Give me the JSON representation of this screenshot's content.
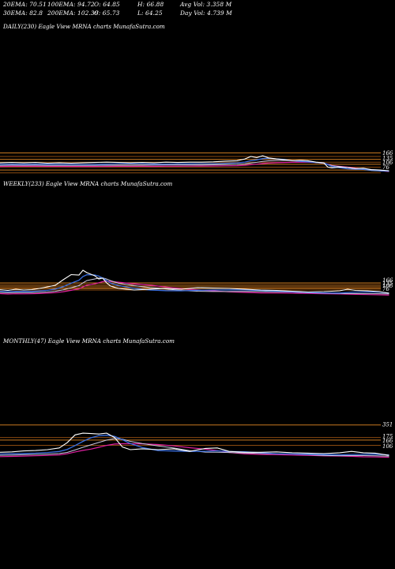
{
  "header": {
    "row1": [
      {
        "text": "20EMA: 70.51"
      },
      {
        "text": "100EMA: 94.72"
      },
      {
        "text": "O: 64.85"
      },
      {
        "text": "H: 66.88"
      },
      {
        "text": "Avg Vol: 3.358  M"
      }
    ],
    "row2": [
      {
        "text": "30EMA: 82.8"
      },
      {
        "text": "200EMA: 102.39"
      },
      {
        "text": "C: 65.73"
      },
      {
        "text": "L: 64.25"
      },
      {
        "text": "Day Vol: 4.739 M"
      }
    ]
  },
  "colors": {
    "background": "#000000",
    "price": "#ffffff",
    "ema_blue": "#3a6fe0",
    "ema_pink": "#e020a0",
    "ema_light": "#c8c8e0",
    "level_orange": "#c87820",
    "level_brown": "#8a4a10"
  },
  "chart_data": [
    {
      "type": "line",
      "title": "DAILY(230) Eagle   View  MRNA charts MunafaSutra.com",
      "levels": [
        {
          "label": "166"
        },
        {
          "label": "135"
        },
        {
          "label": "106"
        },
        {
          "label": "76"
        }
      ],
      "price": [
        [
          0,
          0.58
        ],
        [
          0.03,
          0.57
        ],
        [
          0.06,
          0.58
        ],
        [
          0.09,
          0.57
        ],
        [
          0.12,
          0.59
        ],
        [
          0.15,
          0.58
        ],
        [
          0.18,
          0.59
        ],
        [
          0.21,
          0.58
        ],
        [
          0.24,
          0.57
        ],
        [
          0.27,
          0.56
        ],
        [
          0.3,
          0.57
        ],
        [
          0.33,
          0.58
        ],
        [
          0.36,
          0.57
        ],
        [
          0.39,
          0.58
        ],
        [
          0.42,
          0.56
        ],
        [
          0.45,
          0.57
        ],
        [
          0.48,
          0.56
        ],
        [
          0.51,
          0.56
        ],
        [
          0.54,
          0.55
        ],
        [
          0.57,
          0.53
        ],
        [
          0.6,
          0.52
        ],
        [
          0.62,
          0.47
        ],
        [
          0.635,
          0.4
        ],
        [
          0.65,
          0.43
        ],
        [
          0.665,
          0.38
        ],
        [
          0.68,
          0.44
        ],
        [
          0.7,
          0.47
        ],
        [
          0.72,
          0.49
        ],
        [
          0.74,
          0.52
        ],
        [
          0.76,
          0.51
        ],
        [
          0.78,
          0.52
        ],
        [
          0.8,
          0.56
        ],
        [
          0.82,
          0.58
        ],
        [
          0.83,
          0.7
        ],
        [
          0.84,
          0.72
        ],
        [
          0.86,
          0.7
        ],
        [
          0.88,
          0.71
        ],
        [
          0.9,
          0.74
        ],
        [
          0.92,
          0.73
        ],
        [
          0.94,
          0.77
        ],
        [
          0.96,
          0.78
        ],
        [
          0.985,
          0.8
        ]
      ]
    },
    {
      "type": "line",
      "title": "WEEKLY(233) Eagle   View  MRNA charts MunafaSutra.com",
      "levels": [
        {
          "label": "166"
        },
        {
          "label": "135"
        },
        {
          "label": "106"
        },
        {
          "label": "76"
        }
      ],
      "price": [
        [
          0,
          0.83
        ],
        [
          0.02,
          0.85
        ],
        [
          0.04,
          0.82
        ],
        [
          0.06,
          0.84
        ],
        [
          0.08,
          0.83
        ],
        [
          0.1,
          0.8
        ],
        [
          0.12,
          0.76
        ],
        [
          0.14,
          0.72
        ],
        [
          0.16,
          0.58
        ],
        [
          0.18,
          0.45
        ],
        [
          0.2,
          0.46
        ],
        [
          0.21,
          0.34
        ],
        [
          0.22,
          0.4
        ],
        [
          0.24,
          0.48
        ],
        [
          0.25,
          0.56
        ],
        [
          0.26,
          0.54
        ],
        [
          0.27,
          0.66
        ],
        [
          0.28,
          0.74
        ],
        [
          0.3,
          0.8
        ],
        [
          0.34,
          0.84
        ],
        [
          0.38,
          0.82
        ],
        [
          0.42,
          0.8
        ],
        [
          0.46,
          0.82
        ],
        [
          0.5,
          0.78
        ],
        [
          0.54,
          0.79
        ],
        [
          0.58,
          0.8
        ],
        [
          0.62,
          0.82
        ],
        [
          0.66,
          0.84
        ],
        [
          0.7,
          0.85
        ],
        [
          0.74,
          0.87
        ],
        [
          0.78,
          0.89
        ],
        [
          0.82,
          0.88
        ],
        [
          0.86,
          0.86
        ],
        [
          0.88,
          0.82
        ],
        [
          0.9,
          0.85
        ],
        [
          0.93,
          0.86
        ],
        [
          0.96,
          0.88
        ],
        [
          0.985,
          0.92
        ]
      ]
    },
    {
      "type": "line",
      "title": "MONTHLY(47) Eagle   View  MRNA charts MunafaSutra.com",
      "levels": [
        {
          "label": "351"
        },
        {
          "label": "175"
        },
        {
          "label": "166"
        },
        {
          "label": "106"
        }
      ],
      "price": [
        [
          0,
          0.86
        ],
        [
          0.03,
          0.85
        ],
        [
          0.06,
          0.83
        ],
        [
          0.09,
          0.82
        ],
        [
          0.12,
          0.8
        ],
        [
          0.15,
          0.76
        ],
        [
          0.17,
          0.64
        ],
        [
          0.19,
          0.46
        ],
        [
          0.21,
          0.42
        ],
        [
          0.23,
          0.43
        ],
        [
          0.25,
          0.44
        ],
        [
          0.27,
          0.42
        ],
        [
          0.29,
          0.52
        ],
        [
          0.31,
          0.74
        ],
        [
          0.33,
          0.8
        ],
        [
          0.36,
          0.78
        ],
        [
          0.4,
          0.8
        ],
        [
          0.44,
          0.78
        ],
        [
          0.48,
          0.84
        ],
        [
          0.52,
          0.77
        ],
        [
          0.55,
          0.76
        ],
        [
          0.58,
          0.84
        ],
        [
          0.62,
          0.86
        ],
        [
          0.66,
          0.86
        ],
        [
          0.7,
          0.85
        ],
        [
          0.74,
          0.87
        ],
        [
          0.78,
          0.88
        ],
        [
          0.82,
          0.89
        ],
        [
          0.86,
          0.87
        ],
        [
          0.89,
          0.84
        ],
        [
          0.92,
          0.87
        ],
        [
          0.95,
          0.88
        ],
        [
          0.985,
          0.93
        ]
      ]
    }
  ]
}
